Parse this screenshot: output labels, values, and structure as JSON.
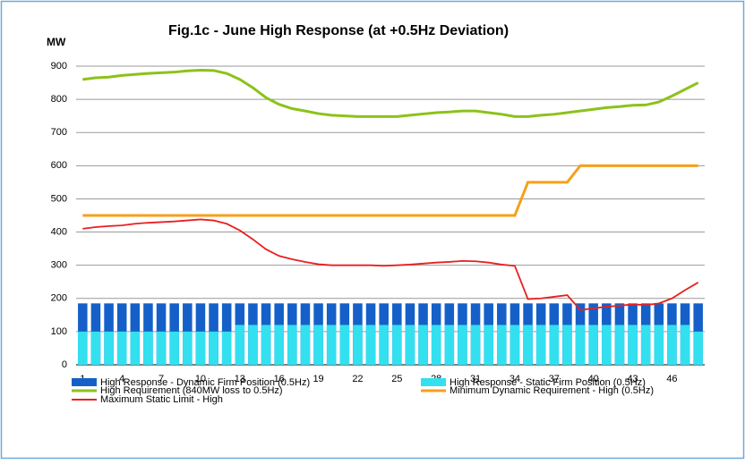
{
  "chart_data": {
    "type": "bar-line",
    "title": "Fig.1c - June High Response (at +0.5Hz Deviation)",
    "y_label": "MW",
    "categories": [
      "1",
      null,
      null,
      "4",
      null,
      null,
      "7",
      null,
      null,
      "10",
      null,
      null,
      "13",
      null,
      null,
      "16",
      null,
      null,
      "19",
      null,
      null,
      "22",
      null,
      null,
      "25",
      null,
      null,
      "28",
      null,
      null,
      "31",
      null,
      null,
      "34",
      null,
      null,
      "37",
      null,
      null,
      "40",
      null,
      null,
      "43",
      null,
      null,
      "46",
      null,
      null
    ],
    "ylim": [
      0,
      900
    ],
    "yticks": [
      0,
      100,
      200,
      300,
      400,
      500,
      600,
      700,
      800,
      900
    ],
    "grid": true,
    "series": [
      {
        "name": "High Response - Dynamic Firm Position (0.5Hz)",
        "kind": "bar",
        "color": "#1560c8",
        "values": [
          185,
          185,
          185,
          185,
          185,
          185,
          185,
          185,
          185,
          185,
          185,
          185,
          185,
          185,
          185,
          185,
          185,
          185,
          185,
          185,
          185,
          185,
          185,
          185,
          185,
          185,
          185,
          185,
          185,
          185,
          185,
          185,
          185,
          185,
          185,
          185,
          185,
          185,
          185,
          185,
          185,
          185,
          185,
          185,
          185,
          185,
          185,
          185
        ]
      },
      {
        "name": "High Response - Static Firm Position (0.5Hz)",
        "kind": "bar",
        "color": "#33e0f0",
        "values": [
          100,
          100,
          100,
          100,
          100,
          100,
          100,
          100,
          100,
          100,
          100,
          100,
          120,
          120,
          120,
          120,
          120,
          120,
          120,
          120,
          120,
          120,
          120,
          120,
          120,
          120,
          120,
          120,
          120,
          120,
          120,
          120,
          120,
          120,
          120,
          120,
          120,
          120,
          120,
          120,
          120,
          120,
          120,
          120,
          120,
          120,
          120,
          100
        ]
      },
      {
        "name": "High Requirement (840MW loss to 0.5Hz)",
        "kind": "line",
        "color": "#8cc21a",
        "values": [
          860,
          865,
          867,
          872,
          875,
          878,
          880,
          882,
          886,
          888,
          887,
          878,
          860,
          835,
          805,
          785,
          772,
          765,
          757,
          752,
          750,
          748,
          748,
          748,
          748,
          752,
          756,
          760,
          762,
          765,
          765,
          760,
          755,
          748,
          748,
          752,
          755,
          760,
          765,
          770,
          775,
          778,
          782,
          783,
          792,
          810,
          830,
          850
        ]
      },
      {
        "name": "Minimum Dynamic Requirement - High (0.5Hz)",
        "kind": "line",
        "color": "#f5a01a",
        "values": [
          450,
          450,
          450,
          450,
          450,
          450,
          450,
          450,
          450,
          450,
          450,
          450,
          450,
          450,
          450,
          450,
          450,
          450,
          450,
          450,
          450,
          450,
          450,
          450,
          450,
          450,
          450,
          450,
          450,
          450,
          450,
          450,
          450,
          450,
          550,
          550,
          550,
          550,
          600,
          600,
          600,
          600,
          600,
          600,
          600,
          600,
          600,
          600
        ]
      },
      {
        "name": "Maximum Static Limit - High",
        "kind": "line",
        "color": "#e82020",
        "values": [
          410,
          415,
          418,
          420,
          425,
          428,
          430,
          432,
          435,
          438,
          435,
          425,
          405,
          378,
          348,
          328,
          318,
          310,
          303,
          300,
          300,
          300,
          300,
          298,
          300,
          302,
          305,
          308,
          310,
          313,
          312,
          308,
          302,
          298,
          198,
          200,
          205,
          210,
          165,
          170,
          175,
          178,
          182,
          180,
          185,
          200,
          225,
          248
        ]
      }
    ]
  }
}
